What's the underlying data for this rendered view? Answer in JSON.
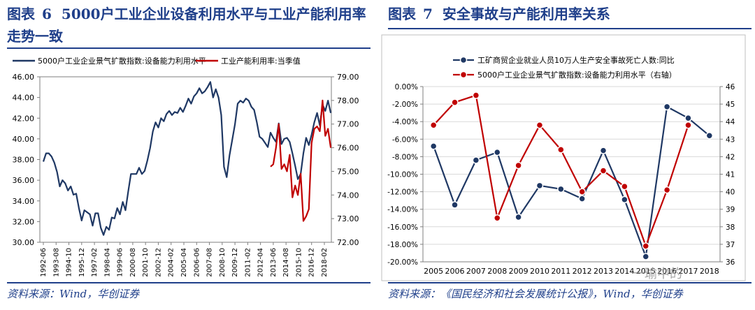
{
  "figure6": {
    "title_prefix": "图表",
    "title_number": "6",
    "title_text": "5000户工业企业设备利用水平与工业产能利用率走势一致",
    "source": "资料来源：Wind，华创证券",
    "colors": {
      "series1": "#1f3864",
      "series2": "#c00000",
      "rule": "#1f3f8a"
    },
    "chart_data": {
      "type": "line",
      "legend_position": "top",
      "grid": false,
      "x_tick_labels": [
        "1992-06",
        "1993-08",
        "1994-10",
        "1995-12",
        "1997-02",
        "1998-04",
        "1999-06",
        "2000-08",
        "2001-10",
        "2002-12",
        "2004-02",
        "2005-04",
        "2006-06",
        "2007-08",
        "2008-10",
        "2009-12",
        "2011-02",
        "2012-04",
        "2013-06",
        "2014-08",
        "2015-10",
        "2016-12",
        "2018-02"
      ],
      "y_left": {
        "ylim": [
          30,
          46
        ],
        "ticks": [
          "30.00",
          "32.00",
          "34.00",
          "36.00",
          "38.00",
          "40.00",
          "42.00",
          "44.00",
          "46.00"
        ]
      },
      "y_right": {
        "ylim": [
          72,
          79
        ],
        "ticks": [
          "72.00",
          "73.00",
          "74.00",
          "75.00",
          "76.00",
          "77.00",
          "78.00",
          "79.00"
        ]
      },
      "series": [
        {
          "name": "5000户工业企业景气扩散指数:设备能力利用水平",
          "axis": "left",
          "x": [
            "1992-06",
            "1992-09",
            "1992-12",
            "1993-03",
            "1993-06",
            "1993-09",
            "1993-12",
            "1994-03",
            "1994-06",
            "1994-09",
            "1994-12",
            "1995-03",
            "1995-06",
            "1995-09",
            "1995-12",
            "1996-03",
            "1996-06",
            "1996-09",
            "1996-12",
            "1997-03",
            "1997-06",
            "1997-09",
            "1997-12",
            "1998-03",
            "1998-06",
            "1998-09",
            "1998-12",
            "1999-03",
            "1999-06",
            "1999-09",
            "1999-12",
            "2000-03",
            "2000-06",
            "2000-09",
            "2000-12",
            "2001-03",
            "2001-06",
            "2001-09",
            "2001-12",
            "2002-03",
            "2002-06",
            "2002-09",
            "2002-12",
            "2003-03",
            "2003-06",
            "2003-09",
            "2003-12",
            "2004-03",
            "2004-06",
            "2004-09",
            "2004-12",
            "2005-03",
            "2005-06",
            "2005-09",
            "2005-12",
            "2006-03",
            "2006-06",
            "2006-09",
            "2006-12",
            "2007-03",
            "2007-06",
            "2007-09",
            "2007-12",
            "2008-03",
            "2008-06",
            "2008-09",
            "2008-12",
            "2009-03",
            "2009-06",
            "2009-09",
            "2009-12",
            "2010-03",
            "2010-06",
            "2010-09",
            "2010-12",
            "2011-03",
            "2011-06",
            "2011-09",
            "2011-12",
            "2012-03",
            "2012-06",
            "2012-09",
            "2012-12",
            "2013-03",
            "2013-06",
            "2013-09",
            "2013-12",
            "2014-03",
            "2014-06",
            "2014-09",
            "2014-12",
            "2015-03",
            "2015-06",
            "2015-09",
            "2015-12",
            "2016-03",
            "2016-06",
            "2016-09",
            "2016-12",
            "2017-03",
            "2017-06",
            "2017-09",
            "2017-12",
            "2018-03",
            "2018-06",
            "2018-09"
          ],
          "values": [
            37.8,
            38.6,
            38.6,
            38.3,
            37.7,
            36.8,
            35.4,
            36.0,
            35.7,
            35.0,
            35.4,
            34.6,
            34.7,
            33.3,
            32.1,
            33.1,
            32.9,
            32.7,
            31.6,
            32.8,
            32.8,
            31.4,
            30.7,
            31.5,
            31.2,
            32.4,
            32.3,
            33.3,
            32.7,
            33.9,
            33.1,
            34.9,
            36.6,
            36.6,
            36.6,
            37.2,
            36.6,
            36.9,
            37.9,
            39.1,
            40.7,
            41.6,
            41.1,
            42.0,
            41.7,
            42.4,
            42.7,
            42.3,
            42.6,
            42.5,
            43.0,
            42.6,
            43.2,
            43.9,
            43.4,
            44.1,
            44.4,
            44.9,
            44.4,
            44.6,
            45.0,
            45.5,
            44.0,
            44.8,
            44.0,
            42.3,
            37.3,
            36.3,
            38.4,
            39.9,
            41.4,
            43.4,
            43.7,
            43.5,
            43.9,
            43.7,
            43.1,
            42.8,
            41.6,
            40.2,
            40.0,
            39.6,
            39.2,
            40.6,
            40.1,
            39.7,
            41.5,
            39.5,
            40.0,
            40.1,
            39.7,
            38.6,
            37.4,
            36.1,
            36.6,
            38.6,
            40.1,
            39.4,
            40.4,
            41.6,
            42.5,
            41.3,
            43.3,
            42.7,
            43.7,
            42.5
          ]
        },
        {
          "name": "工业产能利用率:当季值",
          "axis": "right",
          "x": [
            "2013-03",
            "2013-06",
            "2013-09",
            "2013-12",
            "2014-03",
            "2014-06",
            "2014-09",
            "2014-12",
            "2015-03",
            "2015-06",
            "2015-09",
            "2015-12",
            "2016-03",
            "2016-06",
            "2016-09",
            "2016-12",
            "2017-03",
            "2017-06",
            "2017-09",
            "2017-12",
            "2018-03",
            "2018-06",
            "2018-09"
          ],
          "values": [
            75.2,
            75.3,
            76.0,
            77.0,
            75.1,
            75.3,
            75.0,
            75.7,
            73.9,
            74.4,
            74.0,
            74.9,
            72.9,
            73.1,
            73.4,
            76.2,
            76.8,
            76.9,
            76.7,
            78.0,
            76.5,
            76.8,
            76.0
          ]
        }
      ]
    }
  },
  "figure7": {
    "title_prefix": "图表",
    "title_number": "7",
    "title_text": "安全事故与产能利用率关系",
    "source": "资料来源：《国民经济和社会发展统计公报》，Wind，华创证券",
    "watermark": "一瑜中的",
    "colors": {
      "series1": "#1f3864",
      "series2": "#c00000",
      "rule": "#1f3f8a"
    },
    "chart_data": {
      "type": "line",
      "legend_position": "top",
      "grid": true,
      "categories": [
        "2005",
        "2006",
        "2007",
        "2008",
        "2009",
        "2010",
        "2011",
        "2012",
        "2013",
        "2014",
        "2015",
        "2016",
        "2017",
        "2018"
      ],
      "y_left": {
        "ylim": [
          -20,
          0
        ],
        "ticks": [
          "-20.00%",
          "-18.00%",
          "-16.00%",
          "-14.00%",
          "-12.00%",
          "-10.00%",
          "-8.00%",
          "-6.00%",
          "-4.00%",
          "-2.00%",
          "0.00%"
        ]
      },
      "y_right": {
        "ylim": [
          36,
          46
        ],
        "ticks": [
          "36",
          "37",
          "38",
          "39",
          "40",
          "41",
          "42",
          "43",
          "44",
          "45",
          "46"
        ]
      },
      "x_tick_labels": [
        "2005",
        "2006",
        "2007",
        "2008",
        "2009",
        "2010",
        "2011",
        "2012",
        "2013",
        "2014",
        "2015",
        "2016",
        "2017",
        "2018"
      ],
      "series": [
        {
          "name": "工矿商贸企业就业人员10万人生产安全事故死亡人数:同比",
          "axis": "left",
          "values": [
            -6.8,
            -13.5,
            -8.4,
            -7.5,
            -14.9,
            -11.3,
            -11.7,
            -12.8,
            -7.3,
            -12.9,
            -19.4,
            -2.3,
            -3.6,
            -5.6
          ]
        },
        {
          "name": "5000户工业企业景气扩散指数:设备能力利用水平（右轴）",
          "axis": "right",
          "values": [
            43.8,
            45.1,
            45.5,
            38.5,
            41.5,
            43.8,
            42.4,
            40.0,
            41.2,
            40.3,
            36.9,
            40.1,
            43.8,
            null
          ]
        }
      ]
    }
  }
}
